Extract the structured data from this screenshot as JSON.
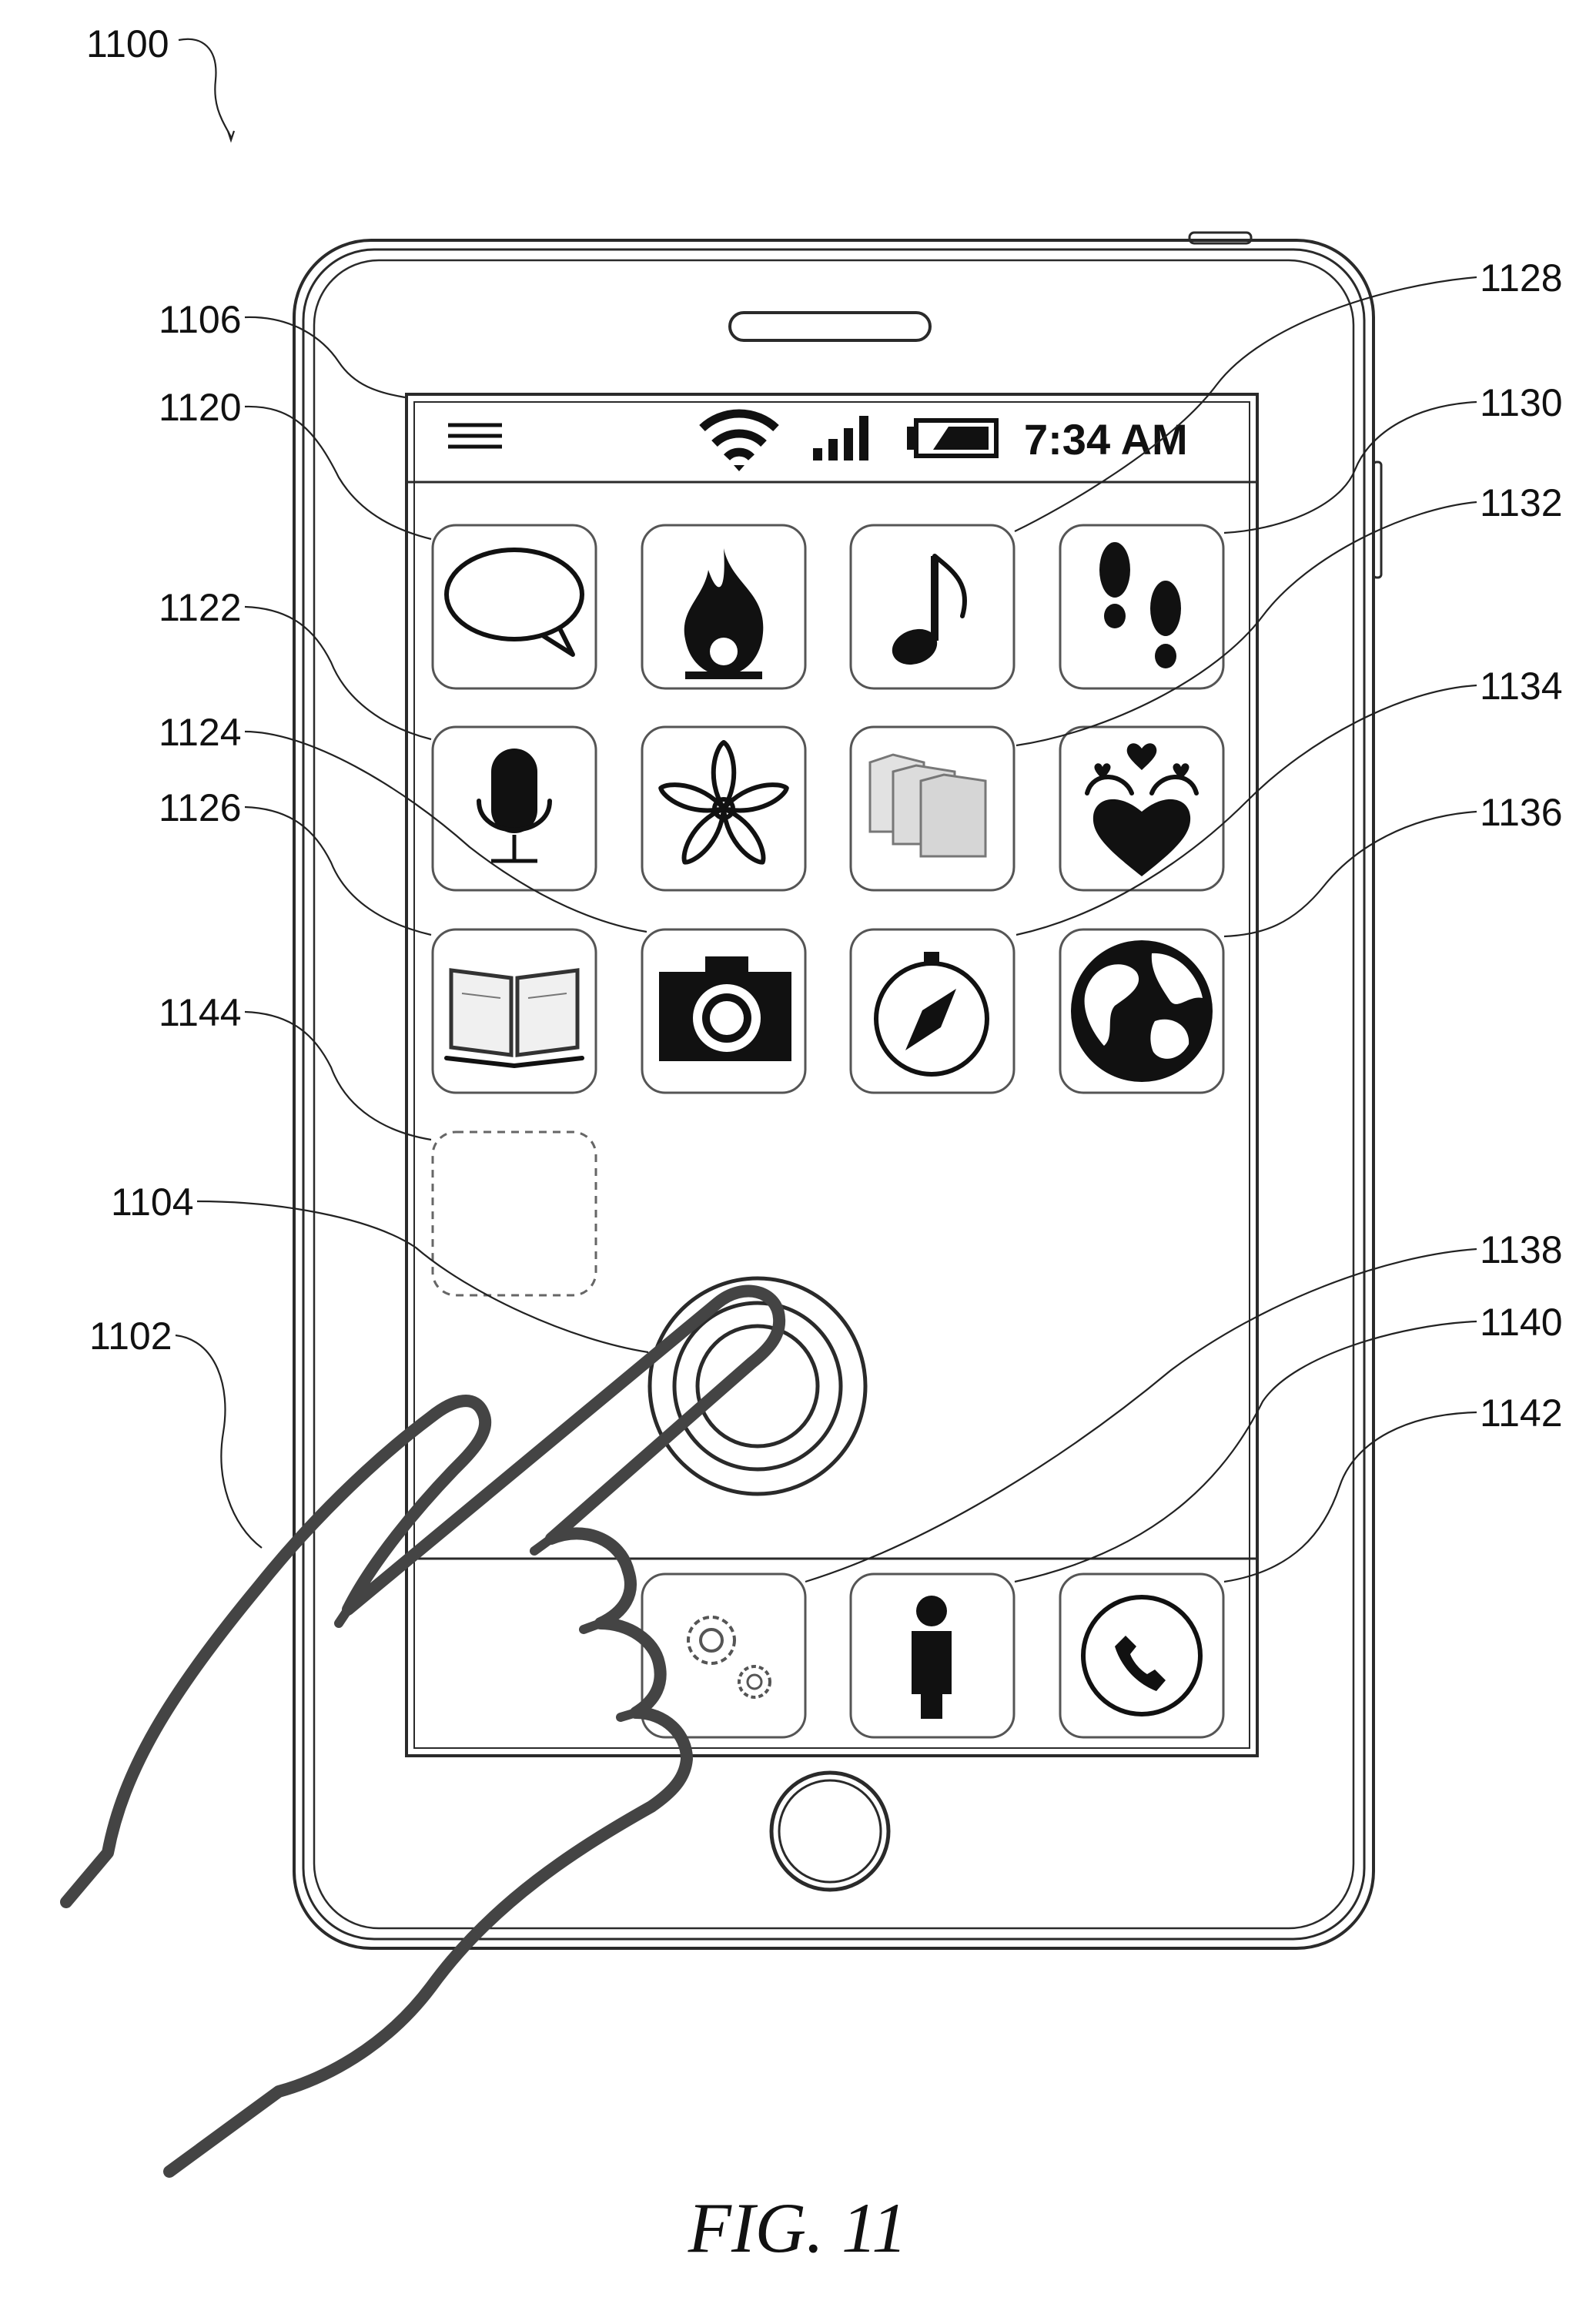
{
  "figure": {
    "caption": "FIG. 11"
  },
  "status_bar": {
    "time": "7:34 AM"
  },
  "reference_numerals": {
    "figure": "1100",
    "hand": "1102",
    "touch_target": "1104",
    "display": "1106",
    "speech_bubble_app": "1120",
    "microphone_app": "1122",
    "camera_app": "1124",
    "book_app": "1126",
    "music_app": "1128",
    "footprints_app": "1130",
    "files_app": "1132",
    "compass_app": "1134",
    "globe_app": "1136",
    "settings_app": "1138",
    "contacts_app": "1140",
    "phone_app": "1142",
    "empty_slot": "1144"
  },
  "icons": {
    "menu": "hamburger-icon",
    "wifi": "wifi-icon",
    "signal": "signal-bars-icon",
    "battery": "battery-icon",
    "grid": [
      "speech-bubble-icon",
      "flame-icon",
      "music-note-icon",
      "footprints-icon",
      "microphone-icon",
      "flower-icon",
      "files-icon",
      "hearts-emblem-icon",
      "book-icon",
      "camera-icon",
      "compass-icon",
      "globe-icon"
    ],
    "dock": [
      "gears-icon",
      "person-icon",
      "phone-handset-icon"
    ]
  },
  "colors": {
    "line": "#2a2a2a",
    "hand": "#444444",
    "tile_border": "#555555"
  }
}
